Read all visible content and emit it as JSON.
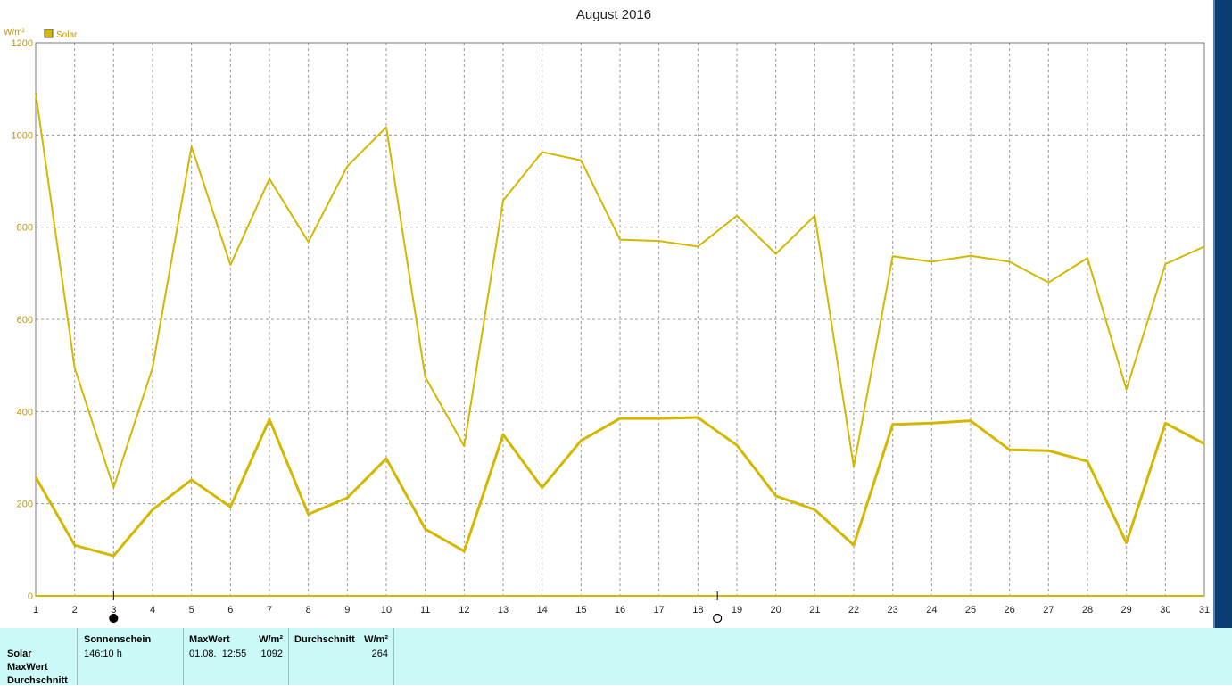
{
  "chart_data": {
    "type": "line",
    "title": "August 2016",
    "ylabel": "W/m²",
    "xlabel": "",
    "ylim": [
      0,
      1200
    ],
    "yticks": [
      0,
      200,
      400,
      600,
      800,
      1000,
      1200
    ],
    "grid": true,
    "legend_position": "top-left",
    "x": [
      1,
      2,
      3,
      4,
      5,
      6,
      7,
      8,
      9,
      10,
      11,
      12,
      13,
      14,
      15,
      16,
      17,
      18,
      19,
      20,
      21,
      22,
      23,
      24,
      25,
      26,
      27,
      28,
      29,
      30,
      31
    ],
    "series": [
      {
        "name": "Solar",
        "color": "#d4b800",
        "values": [
          1092,
          495,
          235,
          495,
          975,
          718,
          905,
          768,
          932,
          1017,
          475,
          325,
          858,
          963,
          945,
          773,
          770,
          758,
          825,
          742,
          825,
          280,
          737,
          725,
          738,
          725,
          680,
          733,
          448,
          720,
          758
        ]
      },
      {
        "name": "",
        "color": "#d4b800",
        "values": [
          258,
          110,
          87,
          187,
          252,
          193,
          383,
          177,
          213,
          298,
          145,
          97,
          350,
          235,
          337,
          385,
          385,
          387,
          327,
          217,
          187,
          110,
          372,
          375,
          380,
          317,
          315,
          292,
          115,
          375,
          330
        ]
      }
    ],
    "markers": [
      {
        "x": 3,
        "symbol": "new-moon"
      },
      {
        "x": 18.5,
        "symbol": "full-moon"
      }
    ]
  },
  "stats": {
    "row_labels": [
      "Solar",
      "MaxWert",
      "Durchschnitt"
    ],
    "sunshine_header": "Sonnenschein",
    "sunshine_value": "146:10 h",
    "max_header": "MaxWert",
    "max_unit": "W/m²",
    "max_date": "01.08.  12:55",
    "max_value": "1092",
    "avg_header": "Durchschnitt",
    "avg_unit": "W/m²",
    "avg_value": "264"
  },
  "colors": {
    "line": "#d4b800",
    "panel": "#ccfaf8",
    "strip": "#0b3f73"
  }
}
